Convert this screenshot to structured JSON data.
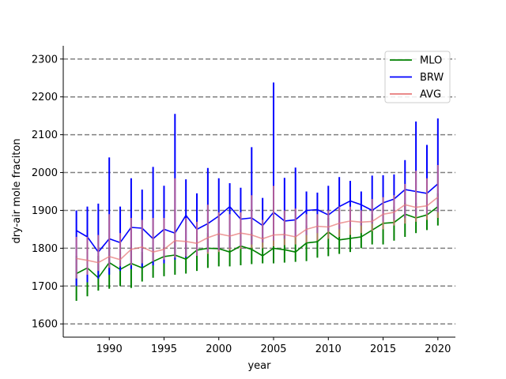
{
  "chart_data": {
    "type": "line",
    "title": "",
    "xlabel": "year",
    "ylabel": "dry-air mole fraciton",
    "xlim": [
      1985.8,
      2021.6
    ],
    "ylim": [
      1565,
      2335
    ],
    "x_ticks": [
      1990,
      1995,
      2000,
      2005,
      2010,
      2015,
      2020
    ],
    "y_ticks": [
      1600,
      1700,
      1800,
      1900,
      2000,
      2100,
      2200,
      2300
    ],
    "grid": "horizontal dashed",
    "legend_position": "top-right",
    "x": [
      1987,
      1988,
      1989,
      1990,
      1991,
      1992,
      1993,
      1994,
      1995,
      1996,
      1997,
      1998,
      1999,
      2000,
      2001,
      2002,
      2003,
      2004,
      2005,
      2006,
      2007,
      2008,
      2009,
      2010,
      2011,
      2012,
      2013,
      2014,
      2015,
      2016,
      2017,
      2018,
      2019,
      2020
    ],
    "series": [
      {
        "name": "MLO",
        "color": "#008000",
        "mean": [
          1733,
          1748,
          1722,
          1762,
          1744,
          1760,
          1748,
          1765,
          1778,
          1782,
          1771,
          1795,
          1800,
          1799,
          1790,
          1806,
          1797,
          1780,
          1800,
          1796,
          1790,
          1814,
          1817,
          1843,
          1822,
          1826,
          1830,
          1848,
          1866,
          1868,
          1890,
          1880,
          1888,
          1910
        ],
        "min": [
          1661,
          1673,
          1688,
          1693,
          1700,
          1695,
          1712,
          1722,
          1726,
          1730,
          1733,
          1740,
          1748,
          1752,
          1752,
          1755,
          1758,
          1760,
          1760,
          1762,
          1764,
          1766,
          1775,
          1779,
          1785,
          1790,
          1800,
          1810,
          1810,
          1820,
          1830,
          1840,
          1848,
          1860
        ],
        "max": [
          1780,
          1790,
          1780,
          1800,
          1790,
          1800,
          1790,
          1800,
          1810,
          1820,
          1810,
          1830,
          1840,
          1840,
          1830,
          1850,
          1840,
          1830,
          1840,
          1840,
          1830,
          1860,
          1860,
          1880,
          1860,
          1870,
          1870,
          1890,
          1900,
          1910,
          1920,
          1920,
          1925,
          1945
        ]
      },
      {
        "name": "BRW",
        "color": "#0000ff",
        "mean": [
          1847,
          1830,
          1790,
          1825,
          1815,
          1855,
          1853,
          1825,
          1850,
          1840,
          1887,
          1850,
          1865,
          1885,
          1910,
          1877,
          1880,
          1860,
          1895,
          1872,
          1875,
          1900,
          1902,
          1888,
          1910,
          1925,
          1915,
          1900,
          1920,
          1930,
          1955,
          1950,
          1945,
          1970
        ],
        "min": [
          1700,
          1710,
          1720,
          1730,
          1740,
          1745,
          1750,
          1755,
          1760,
          1770,
          1775,
          1780,
          1790,
          1795,
          1800,
          1805,
          1810,
          1815,
          1820,
          1825,
          1830,
          1835,
          1840,
          1845,
          1850,
          1855,
          1860,
          1865,
          1870,
          1875,
          1880,
          1885,
          1890,
          1895
        ],
        "max": [
          1900,
          1910,
          1918,
          2040,
          1910,
          1985,
          1955,
          2015,
          1965,
          2155,
          1982,
          1945,
          2012,
          1985,
          1972,
          1960,
          2067,
          1933,
          2238,
          1986,
          2013,
          1950,
          1947,
          1965,
          1988,
          1978,
          1950,
          1992,
          1993,
          1995,
          2033,
          2135,
          2073,
          2143
        ]
      },
      {
        "name": "AVG",
        "color": "#e77a7a",
        "mean": [
          1773,
          1768,
          1762,
          1778,
          1770,
          1797,
          1803,
          1790,
          1797,
          1820,
          1818,
          1813,
          1828,
          1838,
          1832,
          1840,
          1835,
          1825,
          1835,
          1836,
          1830,
          1850,
          1858,
          1856,
          1866,
          1872,
          1869,
          1871,
          1890,
          1895,
          1915,
          1908,
          1912,
          1935
        ],
        "min": [
          1720,
          1730,
          1740,
          1748,
          1752,
          1755,
          1760,
          1765,
          1770,
          1775,
          1778,
          1780,
          1785,
          1790,
          1795,
          1798,
          1800,
          1800,
          1805,
          1808,
          1810,
          1815,
          1820,
          1825,
          1830,
          1835,
          1840,
          1845,
          1850,
          1860,
          1865,
          1870,
          1875,
          1880
        ],
        "max": [
          1830,
          1830,
          1835,
          1890,
          1840,
          1880,
          1875,
          1880,
          1880,
          1985,
          1880,
          1870,
          1915,
          1895,
          1890,
          1895,
          1940,
          1875,
          1965,
          1900,
          1905,
          1890,
          1890,
          1900,
          1910,
          1910,
          1900,
          1930,
          1935,
          1940,
          1970,
          2005,
          1985,
          2020
        ]
      }
    ]
  }
}
